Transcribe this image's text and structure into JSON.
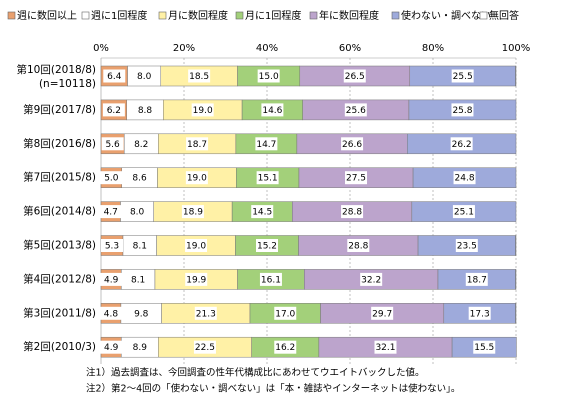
{
  "chart_data": {
    "type": "stacked-bar-horizontal",
    "categories": [
      "第10回(2018/8)",
      "第9回(2017/8)",
      "第8回(2016/8)",
      "第7回(2015/8)",
      "第6回(2014/8)",
      "第5回(2013/8)",
      "第4回(2012/8)",
      "第3回(2011/8)",
      "第2回(2010/3)"
    ],
    "sample_size_label": "(n=10118)",
    "series": [
      {
        "name": "週に数回以上",
        "color": "#e9a06e",
        "values": [
          6.4,
          6.2,
          5.6,
          5.0,
          4.7,
          5.3,
          4.9,
          4.8,
          4.9
        ],
        "value_labels": [
          "6.4",
          "6.2",
          "5.6",
          "5.0",
          "4.7",
          "5.3",
          "4.9",
          "4.8",
          "4.9"
        ]
      },
      {
        "name": "週に1回程度",
        "color": "#ffffff",
        "values": [
          8.0,
          8.8,
          8.2,
          8.6,
          8.0,
          8.1,
          8.1,
          9.8,
          8.9
        ],
        "value_labels": [
          "8.0",
          "8.8",
          "8.2",
          "8.6",
          "8.0",
          "8.1",
          "8.1",
          "9.8",
          "8.9"
        ]
      },
      {
        "name": "月に数回程度",
        "color": "#fff1a6",
        "values": [
          18.5,
          19.0,
          18.7,
          19.0,
          18.9,
          19.0,
          19.9,
          21.3,
          22.5
        ],
        "value_labels": [
          "18.5",
          "19.0",
          "18.7",
          "19.0",
          "18.9",
          "19.0",
          "19.9",
          "21.3",
          "22.5"
        ]
      },
      {
        "name": "月に1回程度",
        "color": "#a3d07a",
        "values": [
          15.0,
          14.6,
          14.7,
          15.1,
          14.5,
          15.2,
          16.1,
          17.0,
          16.2
        ],
        "value_labels": [
          "15.0",
          "14.6",
          "14.7",
          "15.1",
          "14.5",
          "15.2",
          "16.1",
          "17.0",
          "16.2"
        ]
      },
      {
        "name": "年に数回程度",
        "color": "#bca4cc",
        "values": [
          26.5,
          25.6,
          26.6,
          27.5,
          28.8,
          28.8,
          32.2,
          29.7,
          32.1
        ],
        "value_labels": [
          "26.5",
          "25.6",
          "26.6",
          "27.5",
          "28.8",
          "28.8",
          "32.2",
          "29.7",
          "32.1"
        ]
      },
      {
        "name": "使わない・調べない",
        "color": "#9eaadb",
        "values": [
          25.5,
          25.8,
          26.2,
          24.8,
          25.1,
          23.5,
          18.7,
          17.3,
          15.5
        ],
        "value_labels": [
          "25.5",
          "25.8",
          "26.2",
          "24.8",
          "25.1",
          "23.5",
          "18.7",
          "17.3",
          "15.5"
        ]
      },
      {
        "name": "無回答",
        "color": "#ffffff",
        "values": [
          0.1,
          0,
          0,
          0,
          0,
          0.1,
          0.1,
          0.1,
          0
        ]
      }
    ],
    "xlim": [
      0,
      100
    ],
    "xticks": [
      {
        "value": 0,
        "label": "0%"
      },
      {
        "value": 20,
        "label": "20%"
      },
      {
        "value": 40,
        "label": "40%"
      },
      {
        "value": 60,
        "label": "60%"
      },
      {
        "value": 80,
        "label": "80%"
      },
      {
        "value": 100,
        "label": "100%"
      }
    ],
    "notes": [
      "注1）過去調査は、今回調査の性年代構成比にあわせてウエイトバックした値。",
      "注2）第2～4回の「使わない・調べない」は「本・雑誌やインターネットは使わない」。"
    ]
  }
}
